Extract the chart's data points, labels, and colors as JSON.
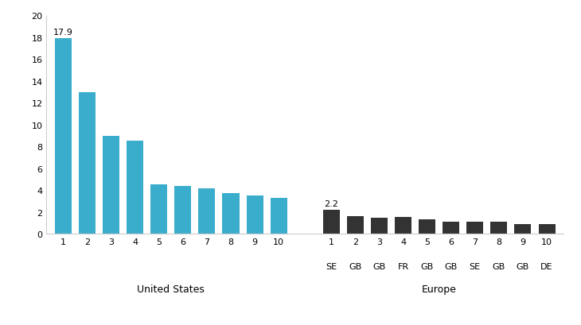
{
  "us_values": [
    17.9,
    13.0,
    9.0,
    8.5,
    4.5,
    4.4,
    4.2,
    3.7,
    3.5,
    3.3
  ],
  "us_labels": [
    "1",
    "2",
    "3",
    "4",
    "5",
    "6",
    "7",
    "8",
    "9",
    "10"
  ],
  "eu_values": [
    2.2,
    1.6,
    1.5,
    1.55,
    1.3,
    1.1,
    1.1,
    1.1,
    0.9,
    0.9
  ],
  "eu_labels": [
    "1",
    "2",
    "3",
    "4",
    "5",
    "6",
    "7",
    "8",
    "9",
    "10"
  ],
  "eu_country_labels": [
    "SE",
    "GB",
    "GB",
    "FR",
    "GB",
    "GB",
    "SE",
    "GB",
    "GB",
    "DE"
  ],
  "us_color": "#3aadcc",
  "eu_color": "#333333",
  "us_group_label": "United States",
  "eu_group_label": "Europe",
  "us_annotation_value": "17.9",
  "eu_annotation_value": "2.2",
  "ylim": [
    0,
    20
  ],
  "yticks": [
    0,
    2,
    4,
    6,
    8,
    10,
    12,
    14,
    16,
    18,
    20
  ],
  "background_color": "#ffffff",
  "figsize": [
    7.3,
    4.1
  ],
  "dpi": 100
}
